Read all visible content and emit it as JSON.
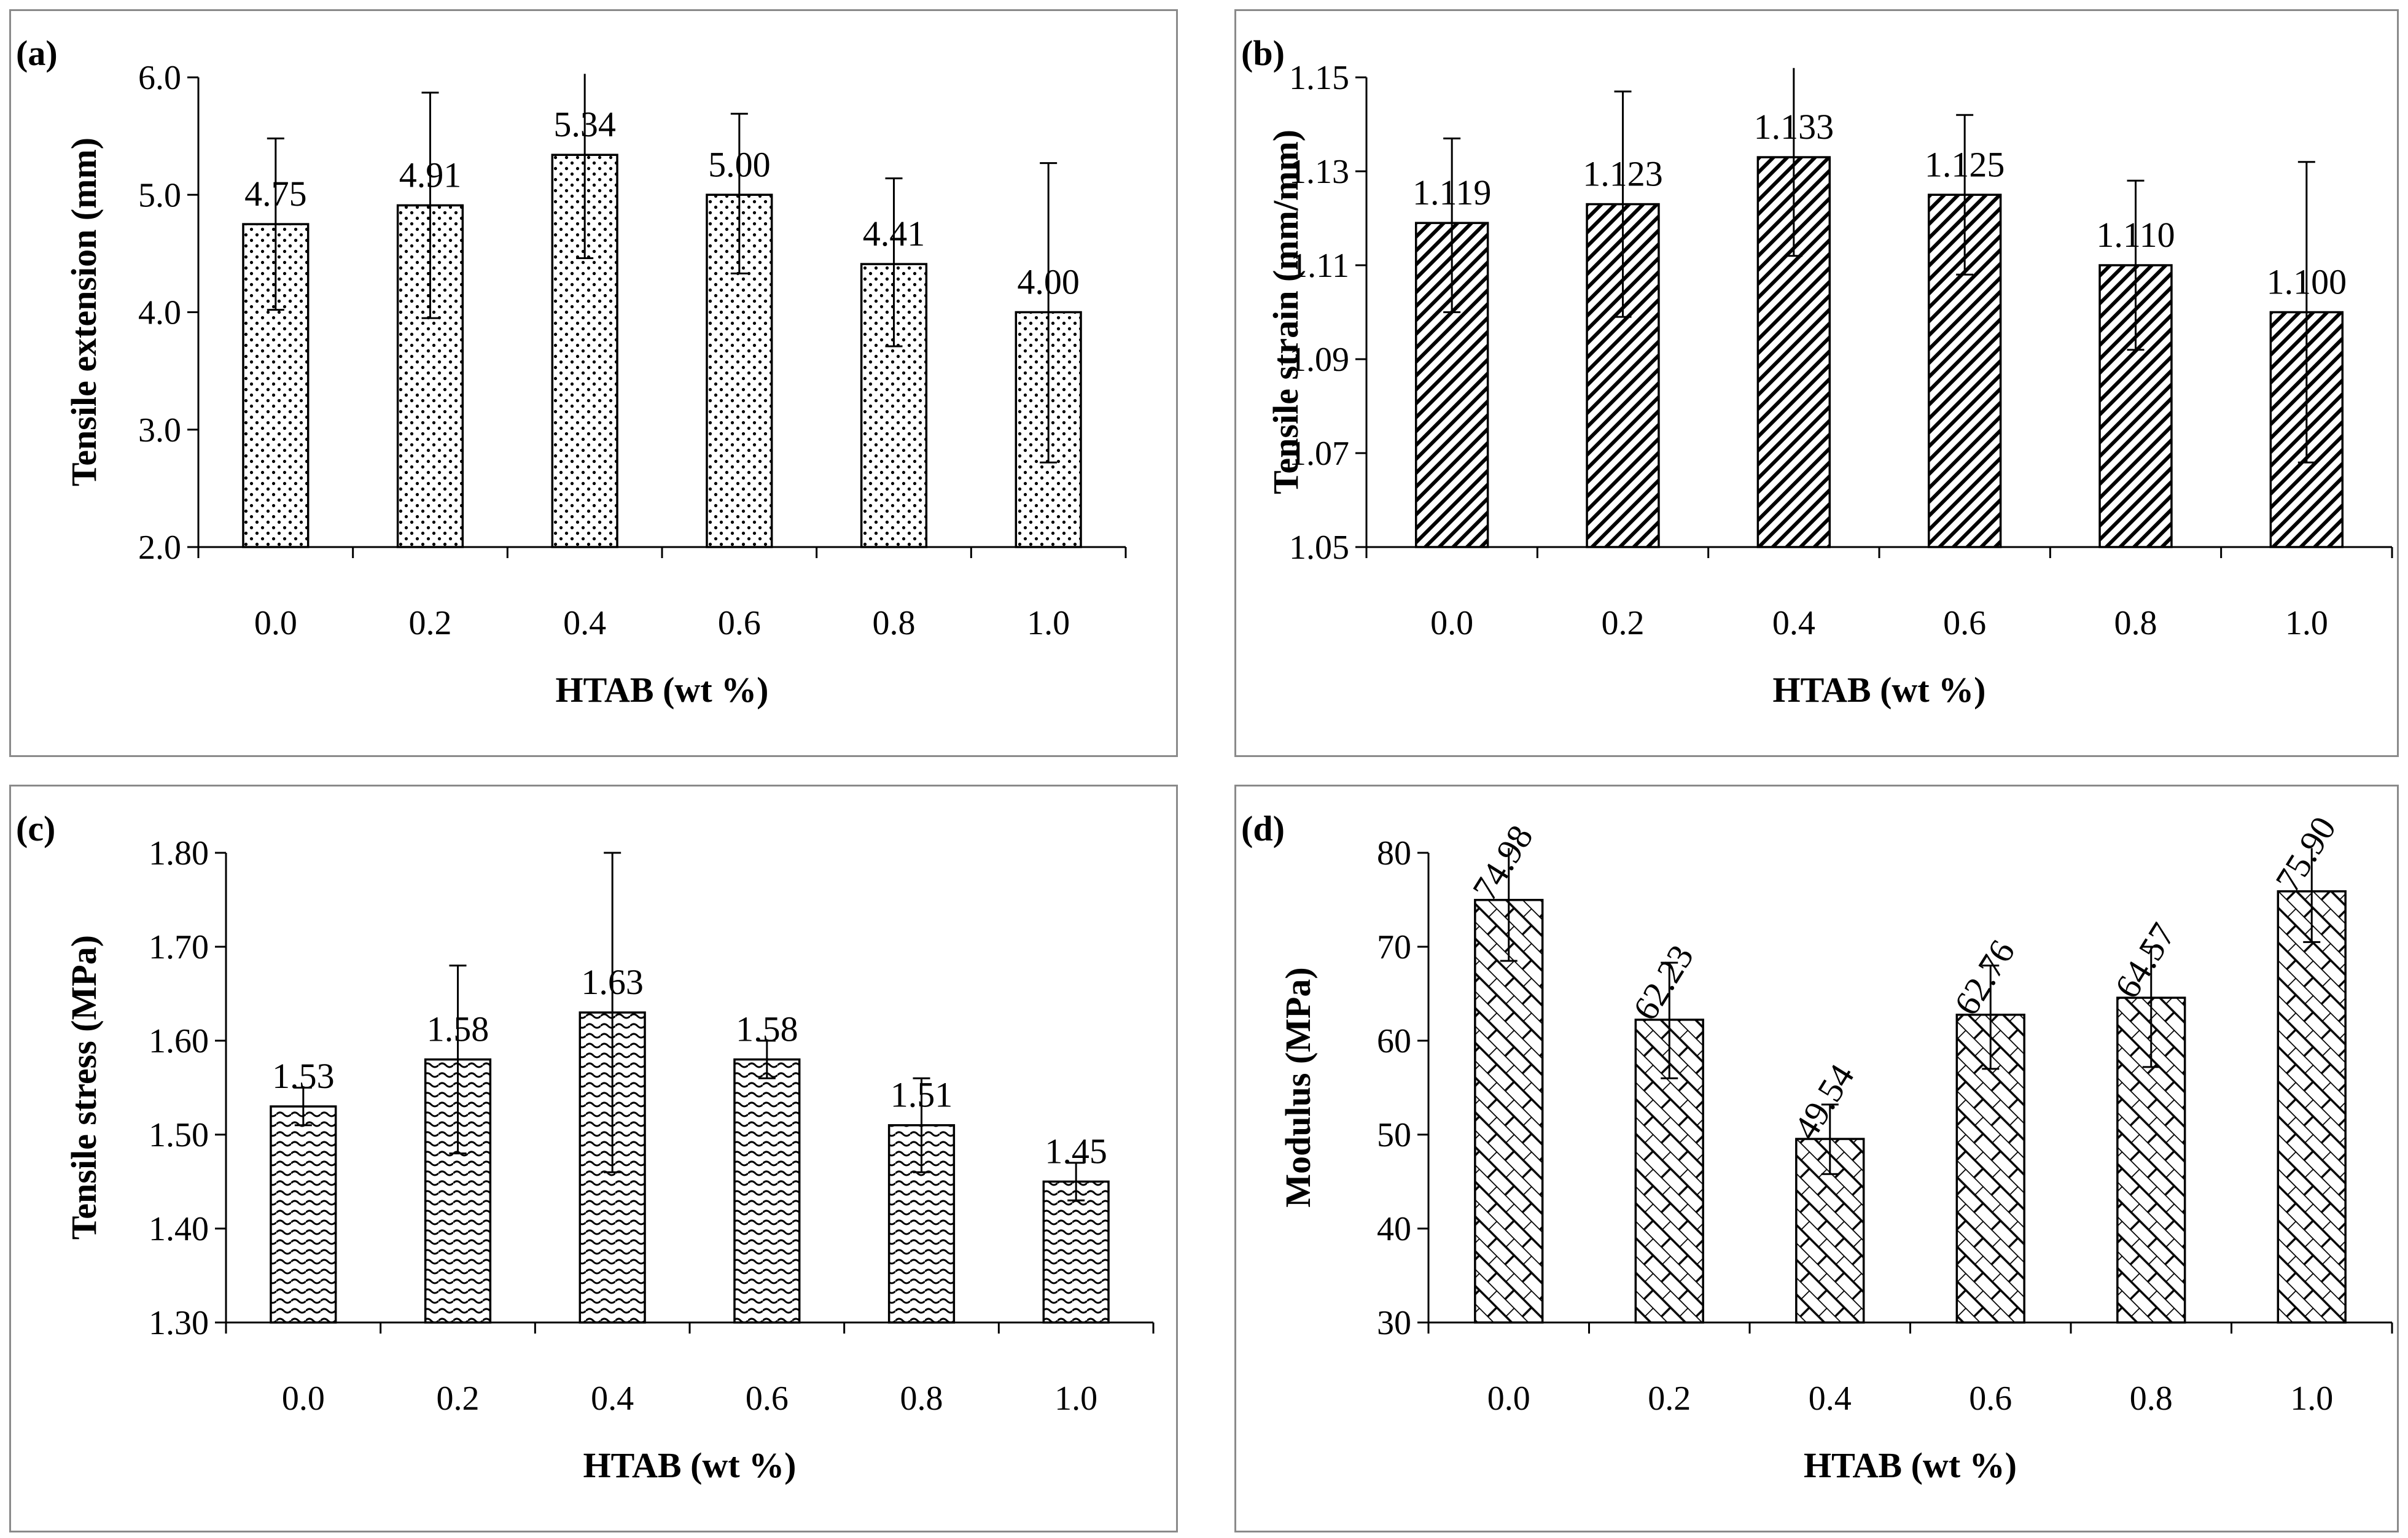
{
  "chart_data": [
    {
      "type": "bar",
      "panel_label": "(a)",
      "categories": [
        "0.0",
        "0.2",
        "0.4",
        "0.6",
        "0.8",
        "1.0"
      ],
      "values": [
        4.75,
        4.91,
        5.34,
        5.0,
        4.41,
        4.0
      ],
      "value_labels": [
        "4.75",
        "4.91",
        "5.34",
        "5.00",
        "4.41",
        "4.00"
      ],
      "error_low": [
        4.02,
        3.95,
        4.46,
        4.33,
        3.71,
        2.72
      ],
      "error_high": [
        5.48,
        5.87,
        6.03,
        5.69,
        5.14,
        5.27
      ],
      "xlabel": "HTAB (wt %)",
      "ylabel": "Tensile extension (mm)",
      "ylim": [
        2.0,
        6.0
      ],
      "yticks": [
        "2.0",
        "3.0",
        "4.0",
        "5.0",
        "6.0"
      ],
      "pattern": "dots",
      "label_rotated": false
    },
    {
      "type": "bar",
      "panel_label": "(b)",
      "categories": [
        "0.0",
        "0.2",
        "0.4",
        "0.6",
        "0.8",
        "1.0"
      ],
      "values": [
        1.119,
        1.123,
        1.133,
        1.125,
        1.11,
        1.1
      ],
      "value_labels": [
        "1.119",
        "1.123",
        "1.133",
        "1.125",
        "1.110",
        "1.100"
      ],
      "error_low": [
        1.1,
        1.099,
        1.112,
        1.108,
        1.092,
        1.068
      ],
      "error_high": [
        1.137,
        1.147,
        1.152,
        1.142,
        1.128,
        1.132
      ],
      "xlabel": "HTAB (wt %)",
      "ylabel": "Tensile strain (mm/mm)",
      "ylim": [
        1.05,
        1.15
      ],
      "yticks": [
        "1.05",
        "1.07",
        "1.09",
        "1.11",
        "1.13",
        "1.15"
      ],
      "pattern": "diagonal",
      "label_rotated": false
    },
    {
      "type": "bar",
      "panel_label": "(c)",
      "categories": [
        "0.0",
        "0.2",
        "0.4",
        "0.6",
        "0.8",
        "1.0"
      ],
      "values": [
        1.53,
        1.58,
        1.63,
        1.58,
        1.51,
        1.45
      ],
      "value_labels": [
        "1.53",
        "1.58",
        "1.63",
        "1.58",
        "1.51",
        "1.45"
      ],
      "error_low": [
        1.51,
        1.48,
        1.46,
        1.56,
        1.46,
        1.43
      ],
      "error_high": [
        1.55,
        1.68,
        1.8,
        1.6,
        1.56,
        1.47
      ],
      "xlabel": "HTAB (wt %)",
      "ylabel": "Tensile stress (MPa)",
      "ylim": [
        1.3,
        1.8
      ],
      "yticks": [
        "1.30",
        "1.40",
        "1.50",
        "1.60",
        "1.70",
        "1.80"
      ],
      "pattern": "wave",
      "label_rotated": false
    },
    {
      "type": "bar",
      "panel_label": "(d)",
      "categories": [
        "0.0",
        "0.2",
        "0.4",
        "0.6",
        "0.8",
        "1.0"
      ],
      "values": [
        74.98,
        62.23,
        49.54,
        62.76,
        64.57,
        75.9
      ],
      "value_labels": [
        "74.98",
        "62.23",
        "49.54",
        "62.76",
        "64.57",
        "75.90"
      ],
      "error_low": [
        68.5,
        56.0,
        45.8,
        57.0,
        57.2,
        70.5
      ],
      "error_high": [
        80.5,
        68.3,
        53.2,
        68.0,
        70.0,
        80.5
      ],
      "xlabel": "HTAB (wt %)",
      "ylabel": "Modulus (MPa)",
      "ylim": [
        30,
        80
      ],
      "yticks": [
        "30",
        "40",
        "50",
        "60",
        "70",
        "80"
      ],
      "pattern": "lattice",
      "label_rotated": true
    }
  ]
}
